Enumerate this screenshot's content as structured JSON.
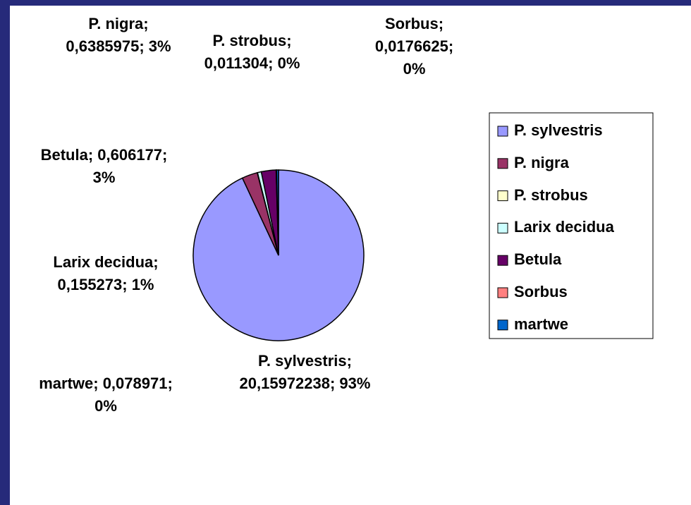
{
  "chart_data": {
    "type": "pie",
    "categories": [
      "P. sylvestris",
      "P. nigra",
      "P. strobus",
      "Larix decidua",
      "Betula",
      "Sorbus",
      "martwe"
    ],
    "values": [
      20.15972238,
      0.6385975,
      0.011304,
      0.155273,
      0.606177,
      0.0176625,
      0.078971
    ],
    "value_labels": [
      "P. sylvestris; 20,15972238; 93%",
      "P. nigra; 0,6385975; 3%",
      "P. strobus; 0,011304; 0%",
      "Larix decidua; 0,155273; 1%",
      "Betula; 0,606177; 3%",
      "Sorbus; 0,0176625; 0%",
      "martwe; 0,078971; 0%"
    ],
    "colors": [
      "#9999ff",
      "#993366",
      "#ffffcc",
      "#ccffff",
      "#660066",
      "#ff8080",
      "#0066cc"
    ],
    "legend": "right"
  }
}
